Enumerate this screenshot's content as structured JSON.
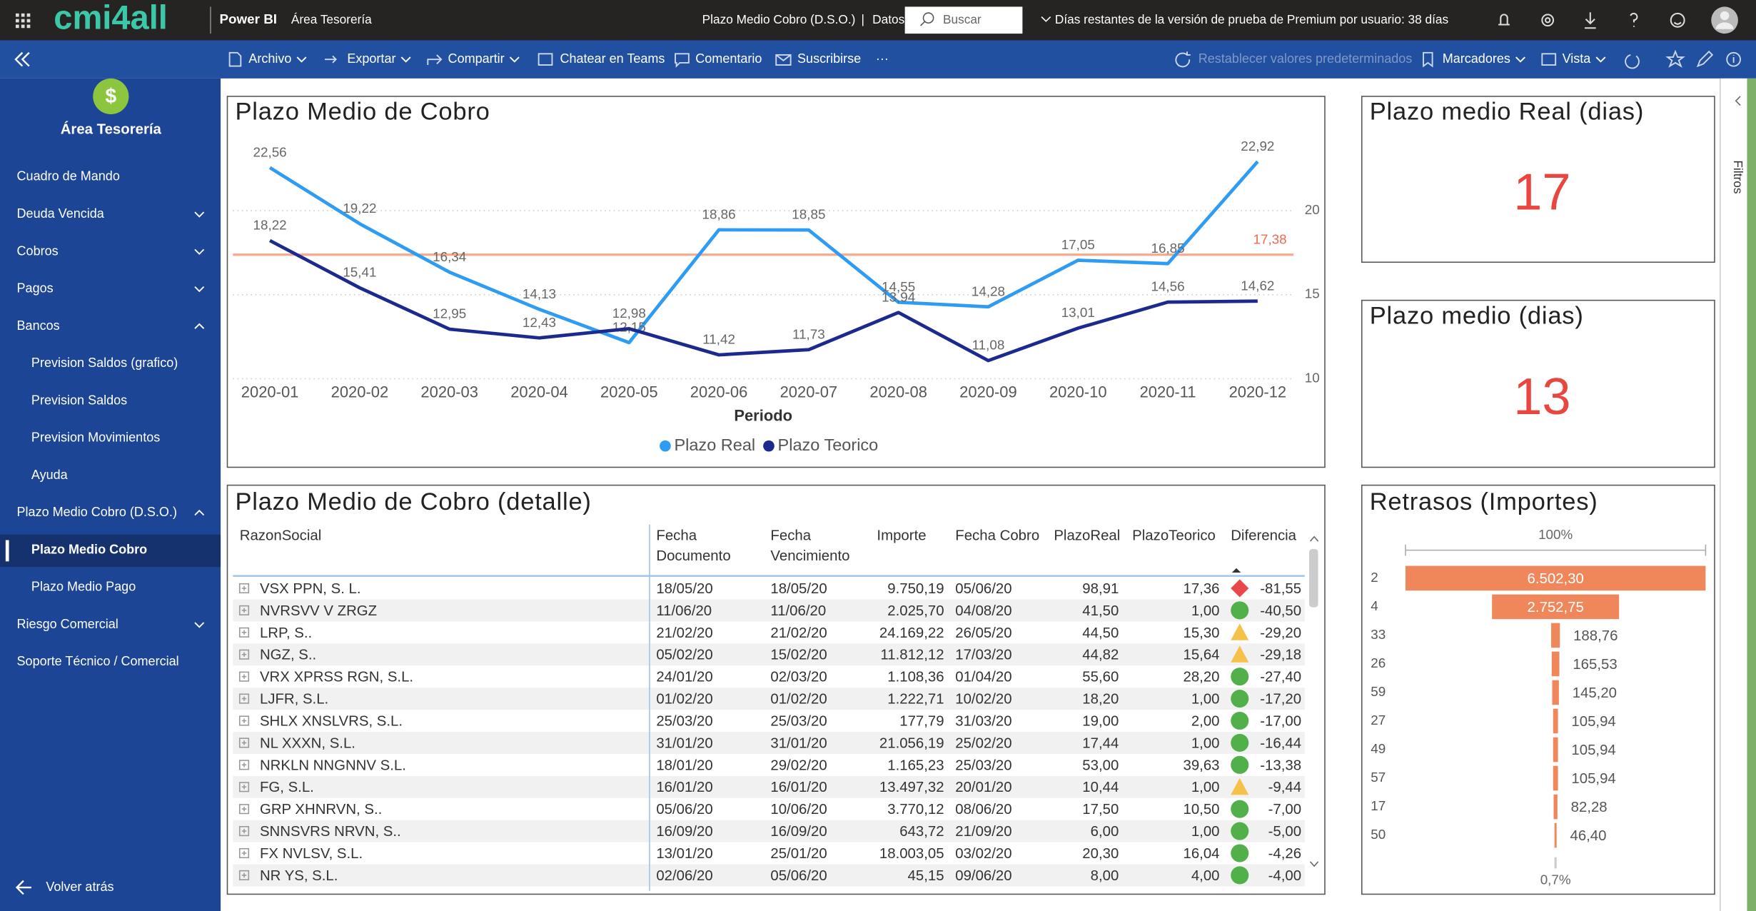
{
  "topbar": {
    "logo": "cmi4all",
    "product": "Power BI",
    "workspace": "Área Tesorería",
    "report": "Plazo Medio Cobro (D.S.O.)",
    "separator": "|",
    "data_menu": "Datos",
    "search_placeholder": "Buscar",
    "trial_notice": "Días restantes de la versión de prueba de Premium por usuario: 38 días"
  },
  "toolbar": {
    "items": [
      "Archivo",
      "Exportar",
      "Compartir",
      "Chatear en Teams",
      "Comentario",
      "Suscribirse",
      "···"
    ],
    "right_items": [
      "Restablecer valores predeterminados",
      "Marcadores",
      "Vista"
    ]
  },
  "sidebar": {
    "title": "Área Tesorería",
    "items": [
      {
        "label": "Cuadro de Mando",
        "level": 1
      },
      {
        "label": "Deuda Vencida",
        "level": 1,
        "chevron": "down"
      },
      {
        "label": "Cobros",
        "level": 1,
        "chevron": "down"
      },
      {
        "label": "Pagos",
        "level": 1,
        "chevron": "down"
      },
      {
        "label": "Bancos",
        "level": 1,
        "chevron": "up"
      },
      {
        "label": "Prevision Saldos (grafico)",
        "level": 2
      },
      {
        "label": "Prevision Saldos",
        "level": 2
      },
      {
        "label": "Prevision Movimientos",
        "level": 2
      },
      {
        "label": "Ayuda",
        "level": 2
      },
      {
        "label": "Plazo Medio Cobro (D.S.O.)",
        "level": 1,
        "chevron": "up"
      },
      {
        "label": "Plazo Medio Cobro",
        "level": 2,
        "selected": true
      },
      {
        "label": "Plazo Medio Pago",
        "level": 2
      },
      {
        "label": "Riesgo Comercial",
        "level": 1,
        "chevron": "down"
      },
      {
        "label": "Soporte Técnico / Comercial",
        "level": 1
      }
    ],
    "back": "Volver atrás"
  },
  "chart_data": [
    {
      "type": "line",
      "title": "Plazo Medio de Cobro",
      "x_label": "Periodo",
      "categories": [
        "2020-01",
        "2020-02",
        "2020-03",
        "2020-04",
        "2020-05",
        "2020-06",
        "2020-07",
        "2020-08",
        "2020-09",
        "2020-10",
        "2020-11",
        "2020-12"
      ],
      "series": [
        {
          "name": "Plazo Real",
          "color": "#2e9cf2",
          "values": [
            22.56,
            19.22,
            16.34,
            14.13,
            12.15,
            18.86,
            18.85,
            14.55,
            14.28,
            17.05,
            16.85,
            22.92
          ],
          "value_labels": [
            "22,56",
            "19,22",
            "16,34",
            "14,13",
            "12,15",
            "18,86",
            "18,85",
            "14,55",
            "14,28",
            "17,05",
            "16,85",
            "22,92"
          ]
        },
        {
          "name": "Plazo Teorico",
          "color": "#1c2a8e",
          "values": [
            18.22,
            15.41,
            12.95,
            12.43,
            12.98,
            11.42,
            11.73,
            13.94,
            11.08,
            13.01,
            14.56,
            14.62
          ],
          "value_labels": [
            "18,22",
            "15,41",
            "12,95",
            "12,43",
            "12,98",
            "11,42",
            "11,73",
            "13,94",
            "11,08",
            "13,01",
            "14,56",
            "14,62"
          ]
        }
      ],
      "reference_line": {
        "value": 17.38,
        "label": "17,38",
        "color": "#f7a98c"
      },
      "ylim": [
        10,
        24
      ],
      "yticks": [
        10,
        15,
        20
      ],
      "y_axis_side": "right",
      "grid": true,
      "legend": "bottom"
    },
    {
      "type": "funnel",
      "title": "Retrasos (Importes)",
      "categories": [
        "2",
        "4",
        "33",
        "26",
        "59",
        "27",
        "49",
        "57",
        "17",
        "50"
      ],
      "values": [
        6502.3,
        2752.75,
        188.76,
        165.53,
        145.2,
        105.94,
        105.94,
        105.94,
        82.28,
        46.4
      ],
      "value_labels": [
        "6.502,30",
        "2.752,75",
        "188,76",
        "165,53",
        "145,20",
        "105,94",
        "105,94",
        "105,94",
        "82,28",
        "46,40"
      ],
      "color": "#f0875b",
      "top_label": "100%",
      "bottom_label": "0,7%"
    }
  ],
  "cards": [
    {
      "title": "Plazo medio Real (dias)",
      "value": 17
    },
    {
      "title": "Plazo medio (dias)",
      "value": 13
    }
  ],
  "table": {
    "title": "Plazo Medio de Cobro (detalle)",
    "columns": [
      "RazonSocial",
      "Fecha Documento",
      "Fecha Vencimiento",
      "Importe",
      "Fecha Cobro",
      "PlazoReal",
      "PlazoTeorico",
      "Diferencia"
    ],
    "rows": [
      [
        "VSX PPN, S. L.",
        "18/05/20",
        "18/05/20",
        "9.750,19",
        "05/06/20",
        "98,91",
        "17,36",
        "-81,55"
      ],
      [
        "NVRSVV V ZRGZ",
        "11/06/20",
        "11/06/20",
        "2.025,70",
        "04/08/20",
        "41,50",
        "1,00",
        "-40,50"
      ],
      [
        "LRP, S..",
        "21/02/20",
        "21/02/20",
        "24.169,22",
        "26/05/20",
        "44,50",
        "15,30",
        "-29,20"
      ],
      [
        "NGZ, S..",
        "05/02/20",
        "15/02/20",
        "11.812,12",
        "17/03/20",
        "44,82",
        "15,64",
        "-29,18"
      ],
      [
        "VRX XPRSS RGN, S.L.",
        "24/01/20",
        "02/03/20",
        "1.108,36",
        "01/04/20",
        "55,60",
        "28,20",
        "-27,40"
      ],
      [
        "LJFR, S.L.",
        "01/02/20",
        "01/02/20",
        "1.222,71",
        "10/02/20",
        "18,20",
        "1,00",
        "-17,20"
      ],
      [
        "SHLX XNSLVRS, S.L.",
        "25/03/20",
        "25/03/20",
        "177,79",
        "31/03/20",
        "19,00",
        "2,00",
        "-17,00"
      ],
      [
        "NL XXXN, S.L.",
        "31/01/20",
        "31/01/20",
        "21.056,19",
        "25/02/20",
        "17,44",
        "1,00",
        "-16,44"
      ],
      [
        "NRKLN NNGNNV S.L.",
        "18/01/20",
        "29/02/20",
        "1.165,23",
        "25/03/20",
        "53,00",
        "39,63",
        "-13,38"
      ],
      [
        "FG, S.L.",
        "16/01/20",
        "16/01/20",
        "13.497,32",
        "20/01/20",
        "10,44",
        "1,00",
        "-9,44"
      ],
      [
        "GRP XHNRVN, S..",
        "05/06/20",
        "10/06/20",
        "3.770,12",
        "08/06/20",
        "17,50",
        "10,50",
        "-7,00"
      ],
      [
        "SNNSVRS NRVN, S..",
        "16/09/20",
        "16/09/20",
        "643,72",
        "21/09/20",
        "6,00",
        "1,00",
        "-5,00"
      ],
      [
        "FX NVLSV, S.L.",
        "13/01/20",
        "25/01/20",
        "18.003,05",
        "03/02/20",
        "20,30",
        "16,04",
        "-4,26"
      ],
      [
        "NR YS, S.L.",
        "02/06/20",
        "05/06/20",
        "45,15",
        "09/06/20",
        "8,00",
        "4,00",
        "-4,00"
      ]
    ],
    "status_icons": [
      "diamond",
      "circle",
      "triangle",
      "triangle",
      "circle",
      "circle",
      "circle",
      "circle",
      "circle",
      "triangle",
      "circle",
      "circle",
      "circle",
      "circle"
    ]
  },
  "filters_pane": {
    "label": "Filtros"
  }
}
